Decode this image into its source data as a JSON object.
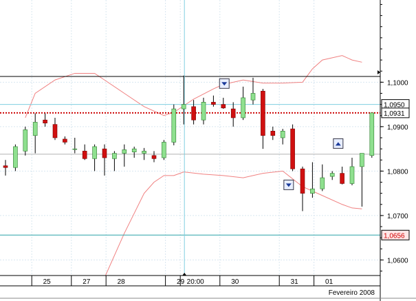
{
  "chart_data": {
    "type": "candlestick",
    "ylim": [
      1.0565,
      1.1185
    ],
    "y_ticks": [
      {
        "v": 1.1,
        "label": "1,1000"
      },
      {
        "v": 1.09,
        "label": "1,0900"
      },
      {
        "v": 1.08,
        "label": "1,0800"
      },
      {
        "v": 1.07,
        "label": "1,0700"
      },
      {
        "v": 1.06,
        "label": "1,0600"
      }
    ],
    "x_ticks": [
      {
        "i": 3,
        "label": "25"
      },
      {
        "i": 7,
        "label": "27"
      },
      {
        "i": 10.5,
        "label": "28"
      },
      {
        "i": 16.5,
        "label": "29"
      },
      {
        "i": 18,
        "label": "20:00"
      },
      {
        "i": 22,
        "label": "30"
      },
      {
        "i": 28,
        "label": "31"
      },
      {
        "i": 31.5,
        "label": "01"
      }
    ],
    "x_period_label": "Fevereiro 2008",
    "grid": true,
    "candles": [
      {
        "o": 1.0812,
        "h": 1.0825,
        "l": 1.079,
        "c": 1.0808
      },
      {
        "o": 1.0808,
        "h": 1.086,
        "l": 1.08,
        "c": 1.0855
      },
      {
        "o": 1.0845,
        "h": 1.09,
        "l": 1.0835,
        "c": 1.0893
      },
      {
        "o": 1.088,
        "h": 1.093,
        "l": 1.084,
        "c": 1.091
      },
      {
        "o": 1.0915,
        "h": 1.093,
        "l": 1.09,
        "c": 1.0908
      },
      {
        "o": 1.0905,
        "h": 1.092,
        "l": 1.087,
        "c": 1.0875
      },
      {
        "o": 1.0872,
        "h": 1.0878,
        "l": 1.086,
        "c": 1.0865
      },
      {
        "o": 1.085,
        "h": 1.0875,
        "l": 1.084,
        "c": 1.085
      },
      {
        "o": 1.0845,
        "h": 1.086,
        "l": 1.0825,
        "c": 1.0828
      },
      {
        "o": 1.0828,
        "h": 1.086,
        "l": 1.08,
        "c": 1.0855
      },
      {
        "o": 1.085,
        "h": 1.086,
        "l": 1.079,
        "c": 1.083
      },
      {
        "o": 1.0828,
        "h": 1.0845,
        "l": 1.08,
        "c": 1.084
      },
      {
        "o": 1.084,
        "h": 1.086,
        "l": 1.081,
        "c": 1.0848
      },
      {
        "o": 1.0843,
        "h": 1.0855,
        "l": 1.083,
        "c": 1.085
      },
      {
        "o": 1.084,
        "h": 1.0852,
        "l": 1.0825,
        "c": 1.0845
      },
      {
        "o": 1.0835,
        "h": 1.0845,
        "l": 1.082,
        "c": 1.0828
      },
      {
        "o": 1.083,
        "h": 1.087,
        "l": 1.0825,
        "c": 1.0865
      },
      {
        "o": 1.0865,
        "h": 1.095,
        "l": 1.0858,
        "c": 1.094
      },
      {
        "o": 1.094,
        "h": 1.1015,
        "l": 1.0905,
        "c": 1.095
      },
      {
        "o": 1.0945,
        "h": 1.096,
        "l": 1.0905,
        "c": 1.0915
      },
      {
        "o": 1.0915,
        "h": 1.0965,
        "l": 1.0905,
        "c": 1.0955
      },
      {
        "o": 1.0955,
        "h": 1.097,
        "l": 1.0945,
        "c": 1.095
      },
      {
        "o": 1.095,
        "h": 1.0965,
        "l": 1.094,
        "c": 1.0942
      },
      {
        "o": 1.094,
        "h": 1.0955,
        "l": 1.09,
        "c": 1.092
      },
      {
        "o": 1.092,
        "h": 1.099,
        "l": 1.0915,
        "c": 1.0965
      },
      {
        "o": 1.096,
        "h": 1.101,
        "l": 1.095,
        "c": 1.0975
      },
      {
        "o": 1.098,
        "h": 1.0985,
        "l": 1.085,
        "c": 1.088
      },
      {
        "o": 1.089,
        "h": 1.09,
        "l": 1.087,
        "c": 1.088
      },
      {
        "o": 1.0875,
        "h": 1.0895,
        "l": 1.086,
        "c": 1.089
      },
      {
        "o": 1.0895,
        "h": 1.0905,
        "l": 1.08,
        "c": 1.0805
      },
      {
        "o": 1.0805,
        "h": 1.081,
        "l": 1.071,
        "c": 1.075
      },
      {
        "o": 1.075,
        "h": 1.082,
        "l": 1.074,
        "c": 1.076
      },
      {
        "o": 1.076,
        "h": 1.0815,
        "l": 1.0755,
        "c": 1.0785
      },
      {
        "o": 1.0788,
        "h": 1.08,
        "l": 1.078,
        "c": 1.0795
      },
      {
        "o": 1.0795,
        "h": 1.081,
        "l": 1.077,
        "c": 1.0772
      },
      {
        "o": 1.0772,
        "h": 1.083,
        "l": 1.0768,
        "c": 1.081
      },
      {
        "o": 1.081,
        "h": 1.084,
        "l": 1.072,
        "c": 1.084
      },
      {
        "o": 1.0835,
        "h": 1.0931,
        "l": 1.083,
        "c": 1.0931
      }
    ],
    "bollinger": {
      "upper": [
        [
          2,
          1.092
        ],
        [
          3,
          1.0975
        ],
        [
          5,
          1.1005
        ],
        [
          7,
          1.102
        ],
        [
          9,
          1.102
        ],
        [
          10,
          1.1005
        ],
        [
          12,
          1.0975
        ],
        [
          14,
          1.0945
        ],
        [
          16,
          1.0925
        ],
        [
          17,
          1.0932
        ],
        [
          19,
          1.0962
        ],
        [
          21,
          1.0985
        ],
        [
          22,
          1.0995
        ],
        [
          24,
          1.1005
        ],
        [
          26,
          1.0998
        ],
        [
          28,
          1.0998
        ],
        [
          30,
          1.1
        ],
        [
          31,
          1.103
        ],
        [
          32,
          1.105
        ],
        [
          34,
          1.106
        ],
        [
          35,
          1.105
        ],
        [
          36,
          1.1045
        ]
      ],
      "lower": [
        [
          10,
          1.056
        ],
        [
          11,
          1.061
        ],
        [
          12,
          1.066
        ],
        [
          13,
          1.0705
        ],
        [
          14,
          1.075
        ],
        [
          15,
          1.0775
        ],
        [
          16,
          1.079
        ],
        [
          17,
          1.079
        ],
        [
          18,
          1.0798
        ],
        [
          20,
          1.0793
        ],
        [
          22,
          1.079
        ],
        [
          24,
          1.0785
        ],
        [
          26,
          1.0795
        ],
        [
          28,
          1.08
        ],
        [
          30,
          1.0765
        ],
        [
          32,
          1.0745
        ],
        [
          34,
          1.0725
        ],
        [
          35,
          1.0717
        ],
        [
          36,
          1.0715
        ]
      ]
    },
    "hlines": [
      {
        "v": 1.1013,
        "color": "#000000",
        "style": "solid"
      },
      {
        "v": 1.095,
        "color": "#7fcfe0",
        "style": "solid",
        "label": "1,0950",
        "tag": "white"
      },
      {
        "v": 1.0931,
        "color": "#cc0000",
        "style": "dotted",
        "label": "1,0931",
        "tag": "white"
      },
      {
        "v": 1.0838,
        "color": "#b0b0b0",
        "style": "solid"
      },
      {
        "v": 1.0656,
        "color": "#2aa2a8",
        "style": "solid",
        "label": "1,0656",
        "tag": "pink"
      }
    ],
    "crosshair_x": 18,
    "markers": [
      {
        "i": 22.1,
        "v": 1.0997,
        "dir": "down"
      },
      {
        "i": 28.6,
        "v": 1.0769,
        "dir": "down"
      },
      {
        "i": 33.6,
        "v": 1.0862,
        "dir": "up"
      }
    ],
    "colors": {
      "up": "#8fe08f",
      "down": "#d01010",
      "band": "#f08080",
      "grid": "#d8e6f0"
    }
  }
}
